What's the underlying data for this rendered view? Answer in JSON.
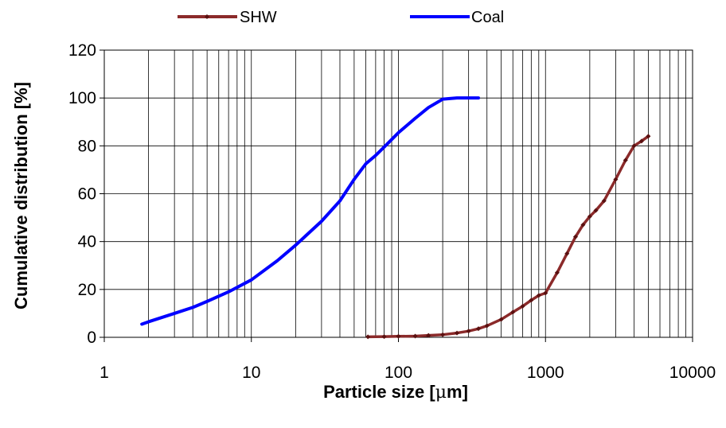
{
  "chart_data": {
    "type": "line",
    "xscale": "log",
    "xlim": [
      1,
      10000
    ],
    "ylim": [
      0,
      120
    ],
    "x_ticks": [
      1,
      10,
      100,
      1000,
      10000
    ],
    "x_tick_labels": [
      "1",
      "10",
      "100",
      "1000",
      "10000"
    ],
    "y_ticks": [
      0,
      20,
      40,
      60,
      80,
      100,
      120
    ],
    "y_tick_labels": [
      "0",
      "20",
      "40",
      "60",
      "80",
      "100",
      "120"
    ],
    "xlabel_prefix": "Particle size [",
    "xlabel_mu": "μ",
    "xlabel_suffix": "m]",
    "ylabel": "Cumulative distribution [%]",
    "grid": true,
    "legend_position": "top",
    "series": [
      {
        "name": "SHW",
        "color": "#8b2a2a",
        "marker": "diamond",
        "points": [
          [
            62,
            0.2
          ],
          [
            80,
            0.3
          ],
          [
            100,
            0.4
          ],
          [
            130,
            0.5
          ],
          [
            160,
            0.8
          ],
          [
            200,
            1.1
          ],
          [
            250,
            1.8
          ],
          [
            300,
            2.6
          ],
          [
            350,
            3.6
          ],
          [
            400,
            4.8
          ],
          [
            500,
            7.5
          ],
          [
            600,
            10.5
          ],
          [
            700,
            13
          ],
          [
            800,
            15.5
          ],
          [
            900,
            17.5
          ],
          [
            1000,
            18.5
          ],
          [
            1200,
            27
          ],
          [
            1400,
            35
          ],
          [
            1600,
            42
          ],
          [
            1800,
            47
          ],
          [
            2000,
            50.5
          ],
          [
            2200,
            53
          ],
          [
            2500,
            57
          ],
          [
            3000,
            66
          ],
          [
            3500,
            74
          ],
          [
            4000,
            80
          ],
          [
            4500,
            82
          ],
          [
            5000,
            84
          ]
        ]
      },
      {
        "name": "Coal",
        "color": "#0000ff",
        "marker": "none",
        "points": [
          [
            1.8,
            5.5
          ],
          [
            2,
            6.5
          ],
          [
            3,
            10
          ],
          [
            4,
            12.5
          ],
          [
            5,
            15
          ],
          [
            7,
            19
          ],
          [
            10,
            24
          ],
          [
            15,
            32
          ],
          [
            20,
            38.5
          ],
          [
            30,
            48.5
          ],
          [
            40,
            57
          ],
          [
            50,
            66
          ],
          [
            60,
            72.5
          ],
          [
            70,
            76
          ],
          [
            80,
            79.5
          ],
          [
            100,
            85.5
          ],
          [
            130,
            91.5
          ],
          [
            160,
            96
          ],
          [
            200,
            99.5
          ],
          [
            250,
            100
          ],
          [
            300,
            100
          ],
          [
            350,
            100
          ]
        ]
      }
    ]
  }
}
